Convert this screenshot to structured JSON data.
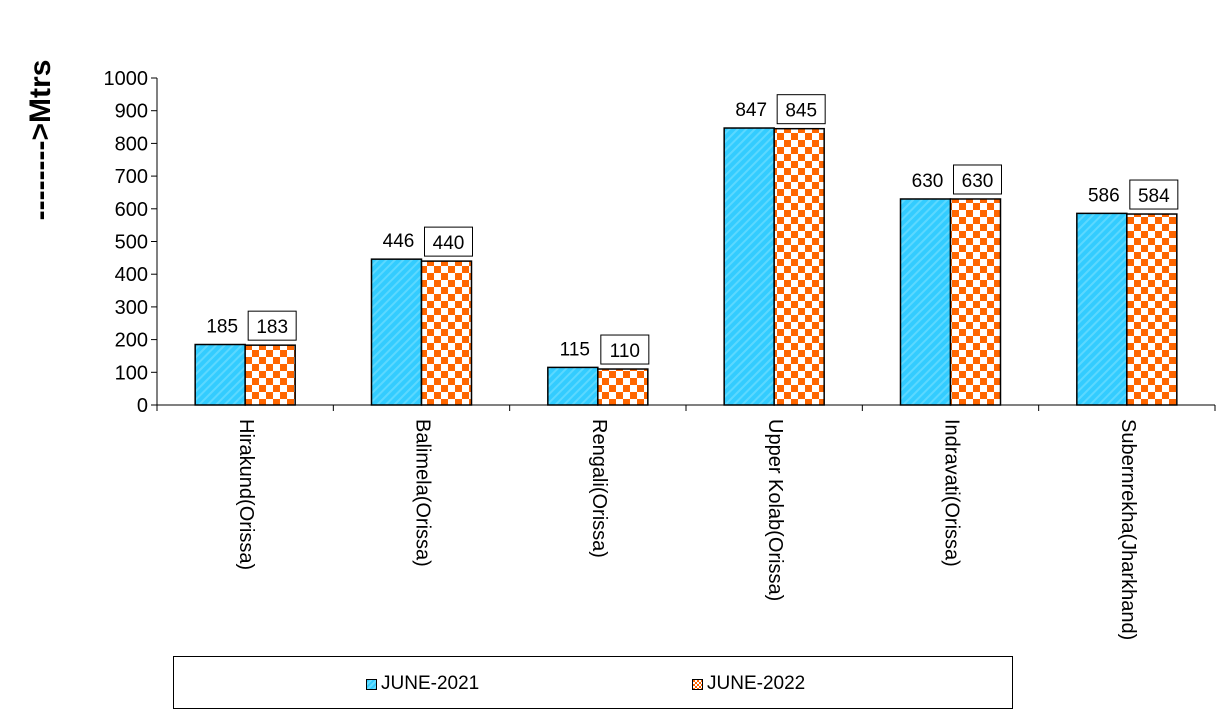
{
  "chart_data": {
    "type": "bar",
    "title": "",
    "xlabel": "",
    "ylabel": "-------->Mtrs",
    "ylim": [
      0,
      1000
    ],
    "yticks": [
      0,
      100,
      200,
      300,
      400,
      500,
      600,
      700,
      800,
      900,
      1000
    ],
    "categories": [
      "Hirakund(Orissa)",
      "Balimela(Orissa)",
      "Rengali(Orissa)",
      "Upper Kolab(Orissa)",
      "Indravati(Orissa)",
      "Subernrekha(Jharkhand)"
    ],
    "series": [
      {
        "name": "JUNE-2021",
        "values": [
          185,
          446,
          115,
          847,
          630,
          586
        ],
        "color": "#33ccff",
        "pattern": "diagonal-stripes"
      },
      {
        "name": "JUNE-2022",
        "values": [
          183,
          440,
          110,
          845,
          630,
          584
        ],
        "color": "#ff6600",
        "pattern": "checkerboard"
      }
    ],
    "grid": false,
    "legend_position": "bottom"
  }
}
